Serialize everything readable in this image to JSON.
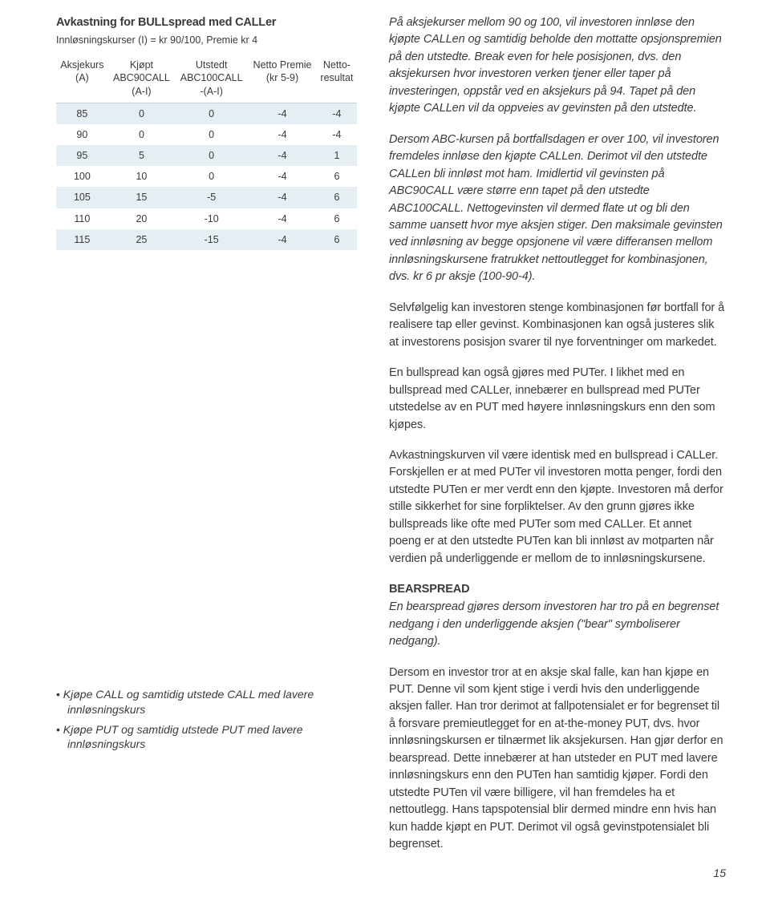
{
  "table": {
    "title": "Avkastning for BULLspread med CALLer",
    "subtitle": "Innløsningskurser (I) = kr 90/100, Premie kr 4",
    "headers": [
      "Aksjekurs\n(A)",
      "Kjøpt\nABC90CALL\n(A-I)",
      "Utstedt\nABC100CALL\n-(A-I)",
      "Netto Premie\n(kr 5-9)",
      "Netto-\nresultat"
    ],
    "rows": [
      [
        "85",
        "0",
        "0",
        "-4",
        "-4"
      ],
      [
        "90",
        "0",
        "0",
        "-4",
        "-4"
      ],
      [
        "95",
        "5",
        "0",
        "-4",
        "1"
      ],
      [
        "100",
        "10",
        "0",
        "-4",
        "6"
      ],
      [
        "105",
        "15",
        "-5",
        "-4",
        "6"
      ],
      [
        "110",
        "20",
        "-10",
        "-4",
        "6"
      ],
      [
        "115",
        "25",
        "-15",
        "-4",
        "6"
      ]
    ]
  },
  "bullets": [
    "Kjøpe CALL og samtidig utstede CALL med lavere innløsningskurs",
    "Kjøpe PUT og samtidig utstede PUT med lavere innløsningskurs"
  ],
  "paras": {
    "p1": "På aksjekurser mellom 90 og 100, vil investoren innløse den kjøpte CALLen og samtidig beholde den mottatte opsjonspremien på den utstedte. Break even for hele posisjonen, dvs. den aksjekursen hvor investoren verken tjener eller taper på investeringen, oppstår ved en aksjekurs på 94. Tapet på den kjøpte CALLen vil da oppveies av gevinsten på den utstedte.",
    "p2": "Dersom ABC-kursen på bortfallsdagen er over 100, vil investoren fremdeles innløse den kjøpte CALLen. Derimot vil den utstedte CALLen bli innløst mot ham. Imidlertid vil gevinsten på ABC90CALL være større enn tapet på den utstedte ABC100CALL. Nettogevinsten vil dermed flate ut og bli den samme uansett hvor mye aksjen stiger. Den maksimale gevinsten ved innløsning av begge opsjonene vil være differansen mellom innløsningskursene fratrukket nettoutlegget for kombinasjonen, dvs. kr 6 pr aksje (100-90-4).",
    "p3": "Selvfølgelig kan investoren stenge kombinasjonen før bortfall for å realisere tap eller gevinst. Kombinasjonen kan også justeres slik at investorens posisjon svarer til nye forventninger om markedet.",
    "p4": "En bullspread kan også gjøres med PUTer. I likhet med en bullspread med CALLer, innebærer en bullspread med PUTer utstedelse av en PUT med høyere innløsningskurs enn den som kjøpes.",
    "p5": "Avkastningskurven vil være identisk med en bullspread i CALLer. Forskjellen er at med PUTer vil investoren motta penger, fordi den utstedte PUTen er mer verdt enn den kjøpte. Investoren må derfor stille sikkerhet for sine forpliktelser. Av den grunn gjøres ikke bullspreads like ofte med PUTer som med CALLer. Et annet poeng er at den utstedte PUTen kan bli innløst av motparten når verdien på underliggende er mellom de to innløsningskursene.",
    "h6": "BEARSPREAD",
    "p6": "En bearspread gjøres dersom investoren har tro på en begrenset nedgang i den underliggende aksjen (\"bear\" symboliserer nedgang).",
    "p7": "Dersom en investor tror at en aksje skal falle, kan han kjøpe en PUT. Denne vil som kjent stige i verdi hvis den underliggende aksjen faller. Han tror derimot at fallpotensialet er for begrenset til å forsvare premieutlegget for en at-the-money PUT, dvs. hvor innløsningskursen er tilnærmet lik aksjekursen. Han gjør derfor en bearspread. Dette innebærer at han utsteder en PUT med lavere innløsningskurs enn den PUTen han samtidig kjøper. Fordi den utstedte PUTen vil være billigere, vil han fremdeles ha et nettoutlegg. Hans tapspotensial blir dermed mindre enn hvis han kun hadde kjøpt en PUT. Derimot vil også gevinstpotensialet bli begrenset."
  },
  "pagenum": "15"
}
